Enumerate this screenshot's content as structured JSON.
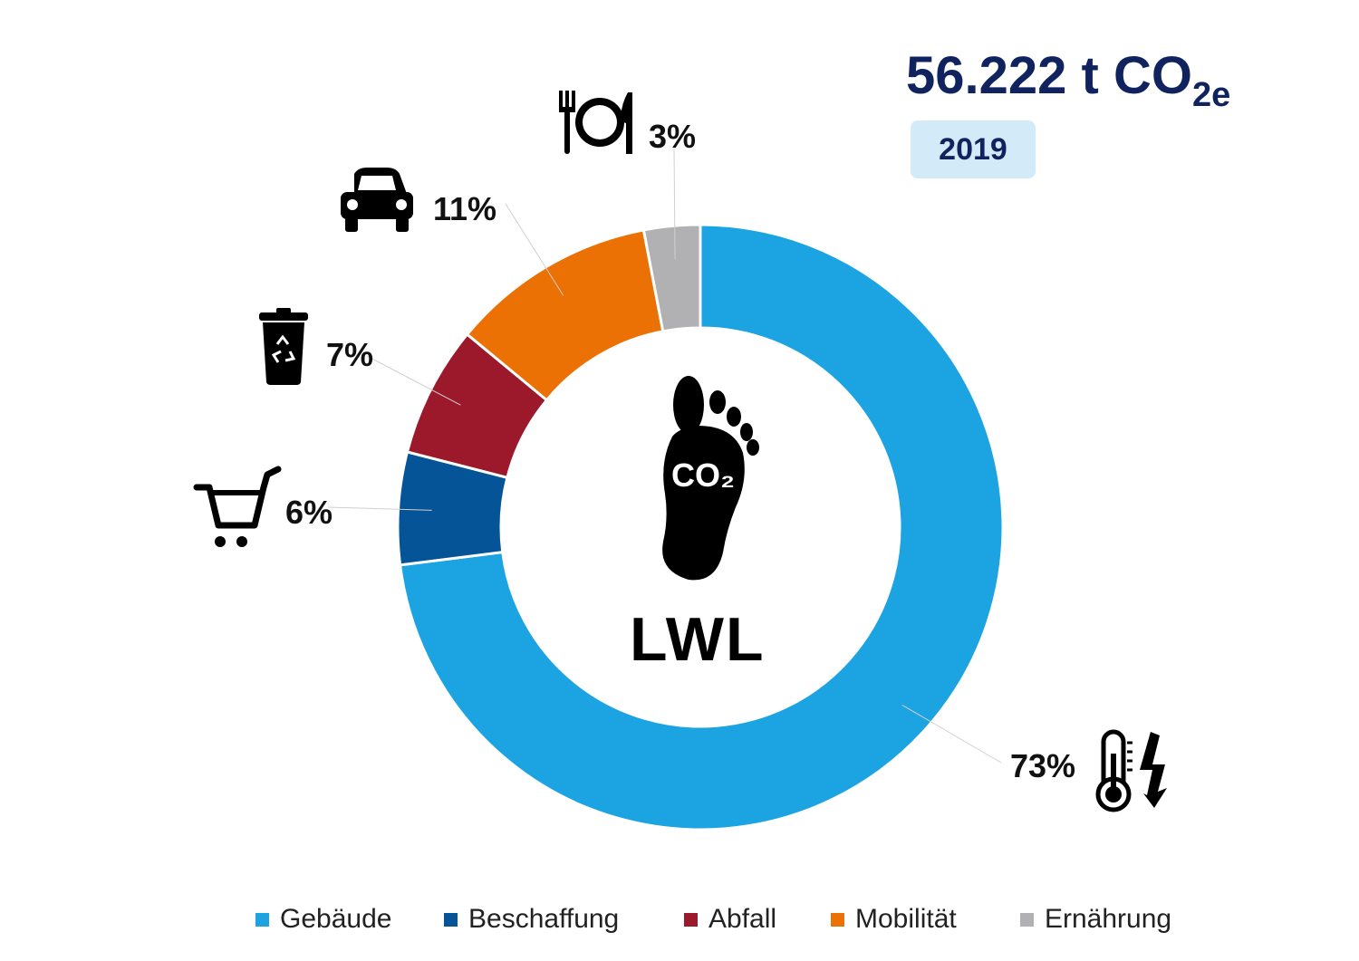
{
  "header": {
    "total_value": "56.222 t CO",
    "total_subscript": "2e",
    "year": "2019"
  },
  "center": {
    "logo_text": "CO₂",
    "label": "LWL"
  },
  "colors": {
    "gebaeude": "#1ba3e2",
    "beschaffung": "#045497",
    "abfall": "#9b192b",
    "mobilitaet": "#ec7104",
    "ernaehrung": "#b1b1b3",
    "title": "#10235f",
    "year_bg": "#d3ebf8"
  },
  "chart_data": {
    "type": "pie",
    "subtype": "donut",
    "categories": [
      "Gebäude",
      "Beschaffung",
      "Abfall",
      "Mobilität",
      "Ernährung"
    ],
    "values": [
      73,
      6,
      7,
      11,
      3
    ],
    "unit": "%",
    "data_labels": [
      "73%",
      "6%",
      "7%",
      "11%",
      "3%"
    ],
    "icons": [
      "thermometer-lightning-icon",
      "shopping-cart-icon",
      "recycling-bin-icon",
      "car-icon",
      "plate-cutlery-icon"
    ],
    "legend": {
      "position": "bottom",
      "entries": [
        "Gebäude",
        "Beschaffung",
        "Abfall",
        "Mobilität",
        "Ernährung"
      ]
    }
  }
}
